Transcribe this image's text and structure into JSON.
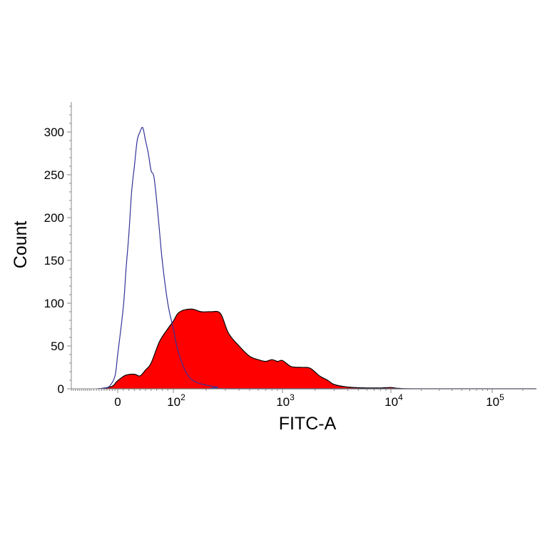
{
  "chart_data": {
    "type": "area",
    "xlabel": "FITC-A",
    "ylabel": "Count",
    "x_scale": "biexponential",
    "ylim": [
      0,
      330
    ],
    "y_ticks": [
      {
        "value": 0,
        "label": "0"
      },
      {
        "value": 50,
        "label": "50"
      },
      {
        "value": 100,
        "label": "100"
      },
      {
        "value": 150,
        "label": "150"
      },
      {
        "value": 200,
        "label": "200"
      },
      {
        "value": 250,
        "label": "250"
      },
      {
        "value": 300,
        "label": "300"
      }
    ],
    "x_ticks": [
      {
        "value": 0,
        "base": "0",
        "exp": ""
      },
      {
        "value": 100,
        "base": "10",
        "exp": "2"
      },
      {
        "value": 1000,
        "base": "10",
        "exp": "3"
      },
      {
        "value": 10000,
        "base": "10",
        "exp": "4"
      },
      {
        "value": 100000,
        "base": "10",
        "exp": "5"
      }
    ],
    "series": [
      {
        "style": "filled",
        "color": "#ff0000",
        "edge_color": "#000000",
        "points": [
          [
            -60,
            0
          ],
          [
            -20,
            3
          ],
          [
            -5,
            8
          ],
          [
            5,
            12
          ],
          [
            15,
            16
          ],
          [
            30,
            17
          ],
          [
            40,
            15
          ],
          [
            50,
            22
          ],
          [
            60,
            30
          ],
          [
            75,
            55
          ],
          [
            90,
            70
          ],
          [
            100,
            79
          ],
          [
            110,
            88
          ],
          [
            125,
            92
          ],
          [
            150,
            93
          ],
          [
            180,
            90
          ],
          [
            220,
            90
          ],
          [
            270,
            88
          ],
          [
            320,
            65
          ],
          [
            400,
            50
          ],
          [
            500,
            38
          ],
          [
            600,
            34
          ],
          [
            700,
            32
          ],
          [
            800,
            34
          ],
          [
            900,
            32
          ],
          [
            1000,
            33
          ],
          [
            1200,
            26
          ],
          [
            1500,
            25
          ],
          [
            1800,
            24
          ],
          [
            2200,
            15
          ],
          [
            2600,
            10
          ],
          [
            3000,
            5
          ],
          [
            4000,
            2
          ],
          [
            6000,
            1
          ],
          [
            8000,
            1
          ],
          [
            10000,
            1.5
          ],
          [
            12000,
            0.5
          ],
          [
            20000,
            0
          ],
          [
            300000,
            0
          ]
        ]
      },
      {
        "style": "outline",
        "color": "#333399",
        "points": [
          [
            -80,
            0
          ],
          [
            -50,
            1
          ],
          [
            -30,
            3
          ],
          [
            -10,
            15
          ],
          [
            0,
            40
          ],
          [
            10,
            95
          ],
          [
            15,
            140
          ],
          [
            20,
            180
          ],
          [
            25,
            230
          ],
          [
            30,
            260
          ],
          [
            35,
            290
          ],
          [
            40,
            300
          ],
          [
            45,
            305
          ],
          [
            50,
            290
          ],
          [
            55,
            275
          ],
          [
            60,
            255
          ],
          [
            65,
            248
          ],
          [
            70,
            220
          ],
          [
            75,
            185
          ],
          [
            80,
            150
          ],
          [
            90,
            100
          ],
          [
            100,
            70
          ],
          [
            110,
            45
          ],
          [
            130,
            20
          ],
          [
            160,
            8
          ],
          [
            250,
            2
          ],
          [
            400,
            0
          ],
          [
            300000,
            0
          ]
        ]
      }
    ]
  }
}
